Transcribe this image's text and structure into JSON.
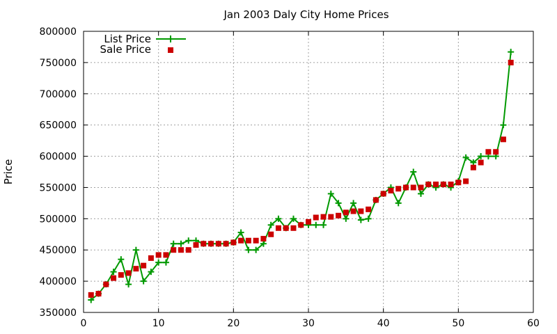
{
  "chart_data": {
    "type": "line",
    "title": "Jan 2003 Daly City Home Prices",
    "xlabel": "",
    "ylabel": "Price",
    "xlim": [
      0,
      60
    ],
    "ylim": [
      350000,
      800000
    ],
    "xticks": [
      0,
      10,
      20,
      30,
      40,
      50,
      60
    ],
    "yticks": [
      350000,
      400000,
      450000,
      500000,
      550000,
      600000,
      650000,
      700000,
      750000,
      800000
    ],
    "grid": true,
    "legend_position": "top-left",
    "series": [
      {
        "name": "List Price",
        "style": "line-points",
        "marker": "plus",
        "color": "#009900",
        "x": [
          1,
          2,
          3,
          4,
          5,
          6,
          7,
          8,
          9,
          10,
          11,
          12,
          13,
          14,
          15,
          16,
          17,
          18,
          19,
          20,
          21,
          22,
          23,
          24,
          25,
          26,
          27,
          28,
          29,
          30,
          31,
          32,
          33,
          34,
          35,
          36,
          37,
          38,
          39,
          40,
          41,
          42,
          43,
          44,
          45,
          46,
          47,
          48,
          49,
          50,
          51,
          52,
          53,
          54,
          55,
          56,
          57
        ],
        "y": [
          370000,
          380000,
          395000,
          415000,
          435000,
          395000,
          450000,
          400000,
          415000,
          430000,
          430000,
          460000,
          460000,
          465000,
          465000,
          460000,
          460000,
          460000,
          460000,
          462000,
          478000,
          450000,
          450000,
          460000,
          490000,
          500000,
          485000,
          500000,
          490000,
          490000,
          490000,
          490000,
          540000,
          525000,
          500000,
          525000,
          498000,
          500000,
          530000,
          540000,
          550000,
          525000,
          550000,
          575000,
          540000,
          555000,
          550000,
          555000,
          550000,
          560000,
          598000,
          590000,
          600000,
          600000,
          600000,
          650000,
          767000
        ]
      },
      {
        "name": "Sale Price",
        "style": "points",
        "marker": "square",
        "color": "#cc0000",
        "x": [
          1,
          2,
          3,
          4,
          5,
          6,
          7,
          8,
          9,
          10,
          11,
          12,
          13,
          14,
          15,
          16,
          17,
          18,
          19,
          20,
          21,
          22,
          23,
          24,
          25,
          26,
          27,
          28,
          29,
          30,
          31,
          32,
          33,
          34,
          35,
          36,
          37,
          38,
          39,
          40,
          41,
          42,
          43,
          44,
          45,
          46,
          47,
          48,
          49,
          50,
          51,
          52,
          53,
          54,
          55,
          56,
          57
        ],
        "y": [
          378000,
          380000,
          395000,
          405000,
          410000,
          413000,
          420000,
          425000,
          437000,
          442000,
          442000,
          450000,
          450000,
          450000,
          458000,
          460000,
          460000,
          460000,
          460000,
          462000,
          465000,
          465000,
          465000,
          468000,
          475000,
          485000,
          485000,
          485000,
          490000,
          495000,
          502000,
          503000,
          503000,
          505000,
          510000,
          512000,
          512000,
          515000,
          530000,
          540000,
          545000,
          548000,
          550000,
          550000,
          550000,
          555000,
          555000,
          555000,
          555000,
          558000,
          560000,
          582000,
          590000,
          607000,
          607000,
          627000,
          750000
        ]
      }
    ]
  }
}
